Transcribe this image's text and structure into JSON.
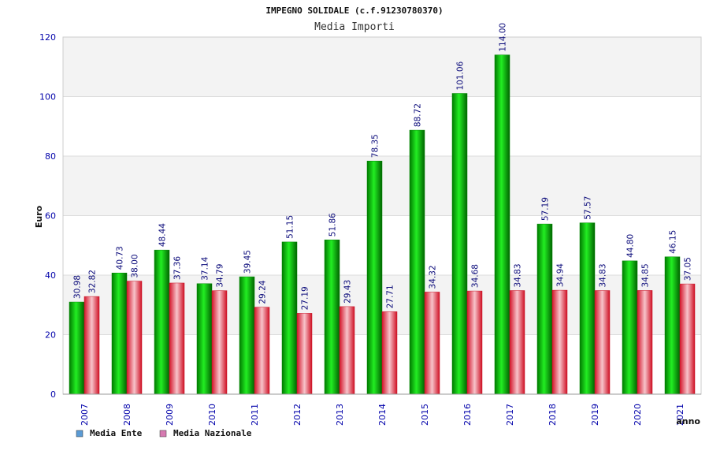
{
  "chart_data": {
    "type": "bar",
    "title": "IMPEGNO SOLIDALE (c.f.91230780370)",
    "subtitle": "Media Importi",
    "ylabel": "Euro",
    "xlabel": "anno",
    "ylim": [
      0,
      120
    ],
    "yticks": [
      0,
      20,
      40,
      60,
      80,
      100,
      120
    ],
    "grid": true,
    "legend_position": "bottom-left",
    "categories": [
      "2007",
      "2008",
      "2009",
      "2010",
      "2011",
      "2012",
      "2013",
      "2014",
      "2015",
      "2016",
      "2017",
      "2018",
      "2019",
      "2020",
      "2021"
    ],
    "series": [
      {
        "name": "Media Ente",
        "color": "#00c000",
        "legend_color": "#5b9bd5",
        "values": [
          30.98,
          40.73,
          48.44,
          37.14,
          39.45,
          51.15,
          51.86,
          78.35,
          88.72,
          101.06,
          114.0,
          57.19,
          57.57,
          44.8,
          46.15
        ],
        "labels": [
          "30.98",
          "40.73",
          "48.44",
          "37.14",
          "39.45",
          "51.15",
          "51.86",
          "78.35",
          "88.72",
          "101.06",
          "114.00",
          "57.19",
          "57.57",
          "44.80",
          "46.15"
        ]
      },
      {
        "name": "Media Nazionale",
        "color": "#e8394a",
        "legend_color": "#d67ab1",
        "values": [
          32.82,
          38.0,
          37.36,
          34.79,
          29.24,
          27.19,
          29.43,
          27.71,
          34.32,
          34.68,
          34.83,
          34.94,
          34.83,
          34.85,
          37.05
        ],
        "labels": [
          "32.82",
          "38.00",
          "37.36",
          "34.79",
          "29.24",
          "27.19",
          "29.43",
          "27.71",
          "34.32",
          "34.68",
          "34.83",
          "34.94",
          "34.83",
          "34.85",
          "37.05"
        ]
      }
    ]
  }
}
